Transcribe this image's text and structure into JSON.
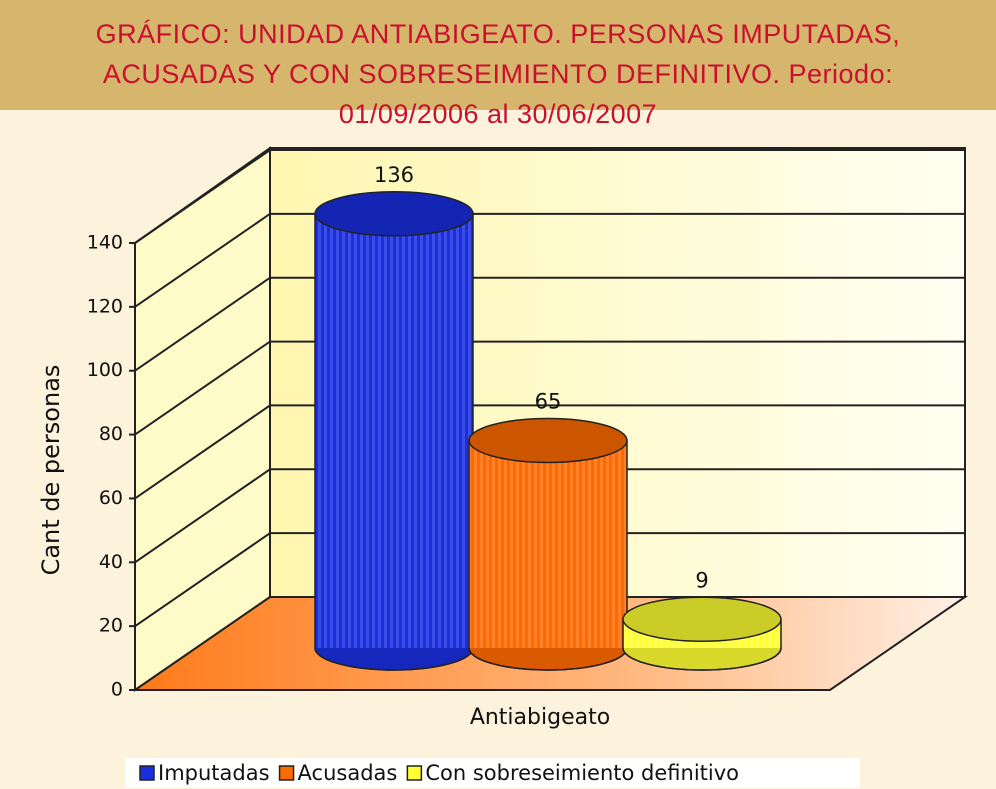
{
  "chart_data": {
    "type": "bar3d",
    "title": "GRÁFICO: UNIDAD ANTIABIGEATO. PERSONAS IMPUTADAS, ACUSADAS Y CON SOBRESEIMIENTO DEFINITIVO. Periodo: 01/09/2006 al 30/06/2007",
    "y_label": "Cant de personas",
    "categories": [
      "Antiabigeato"
    ],
    "series": [
      {
        "name": "Imputadas",
        "color": "#1a2ee0",
        "values": [
          136
        ]
      },
      {
        "name": "Acusadas",
        "color": "#ff6a00",
        "values": [
          65
        ]
      },
      {
        "name": "Con sobreseimiento definitivo",
        "color": "#ffff33",
        "values": [
          9
        ]
      }
    ],
    "ylim": [
      0,
      140
    ],
    "yticks": [
      0,
      20,
      40,
      60,
      80,
      100,
      120,
      140
    ],
    "grid": true,
    "legend": "bottom"
  }
}
